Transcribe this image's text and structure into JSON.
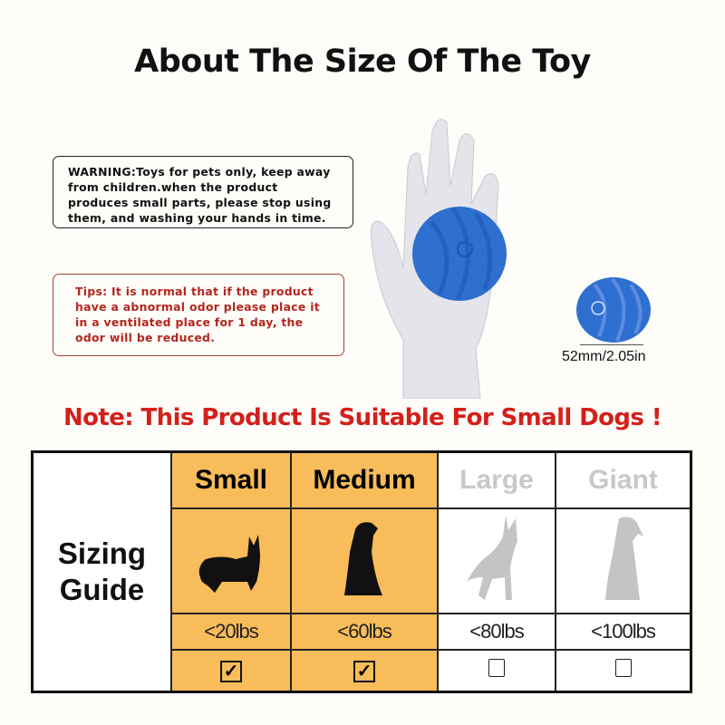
{
  "title": "About The Size Of The Toy",
  "warning": "WARNING:Toys for pets only, keep away from children.when the product produces small parts, please stop using them, and washing your hands in time.",
  "tips": "Tips: It is normal that if the product have a abnormal odor please place it in a ventilated place for 1 day, the odor will be reduced.",
  "dimension": "52mm/2.05in",
  "note": "Note: This Product Is Suitable For Small Dogs !",
  "colors": {
    "highlight": "#f8bc5a",
    "note_red": "#d4201b",
    "ball_blue": "#2f6fd0"
  },
  "sizing": {
    "label_line1": "Sizing",
    "label_line2": "Guide",
    "columns": [
      {
        "name": "Small",
        "weight": "<20lbs",
        "checked": true,
        "icon": "corgi-silhouette-icon"
      },
      {
        "name": "Medium",
        "weight": "<60lbs",
        "checked": true,
        "icon": "sitting-dog-silhouette-icon"
      },
      {
        "name": "Large",
        "weight": "<80lbs",
        "checked": false,
        "icon": "shepherd-silhouette-icon"
      },
      {
        "name": "Giant",
        "weight": "<100lbs",
        "checked": false,
        "icon": "large-dog-silhouette-icon"
      }
    ],
    "check_mark": "✓"
  }
}
